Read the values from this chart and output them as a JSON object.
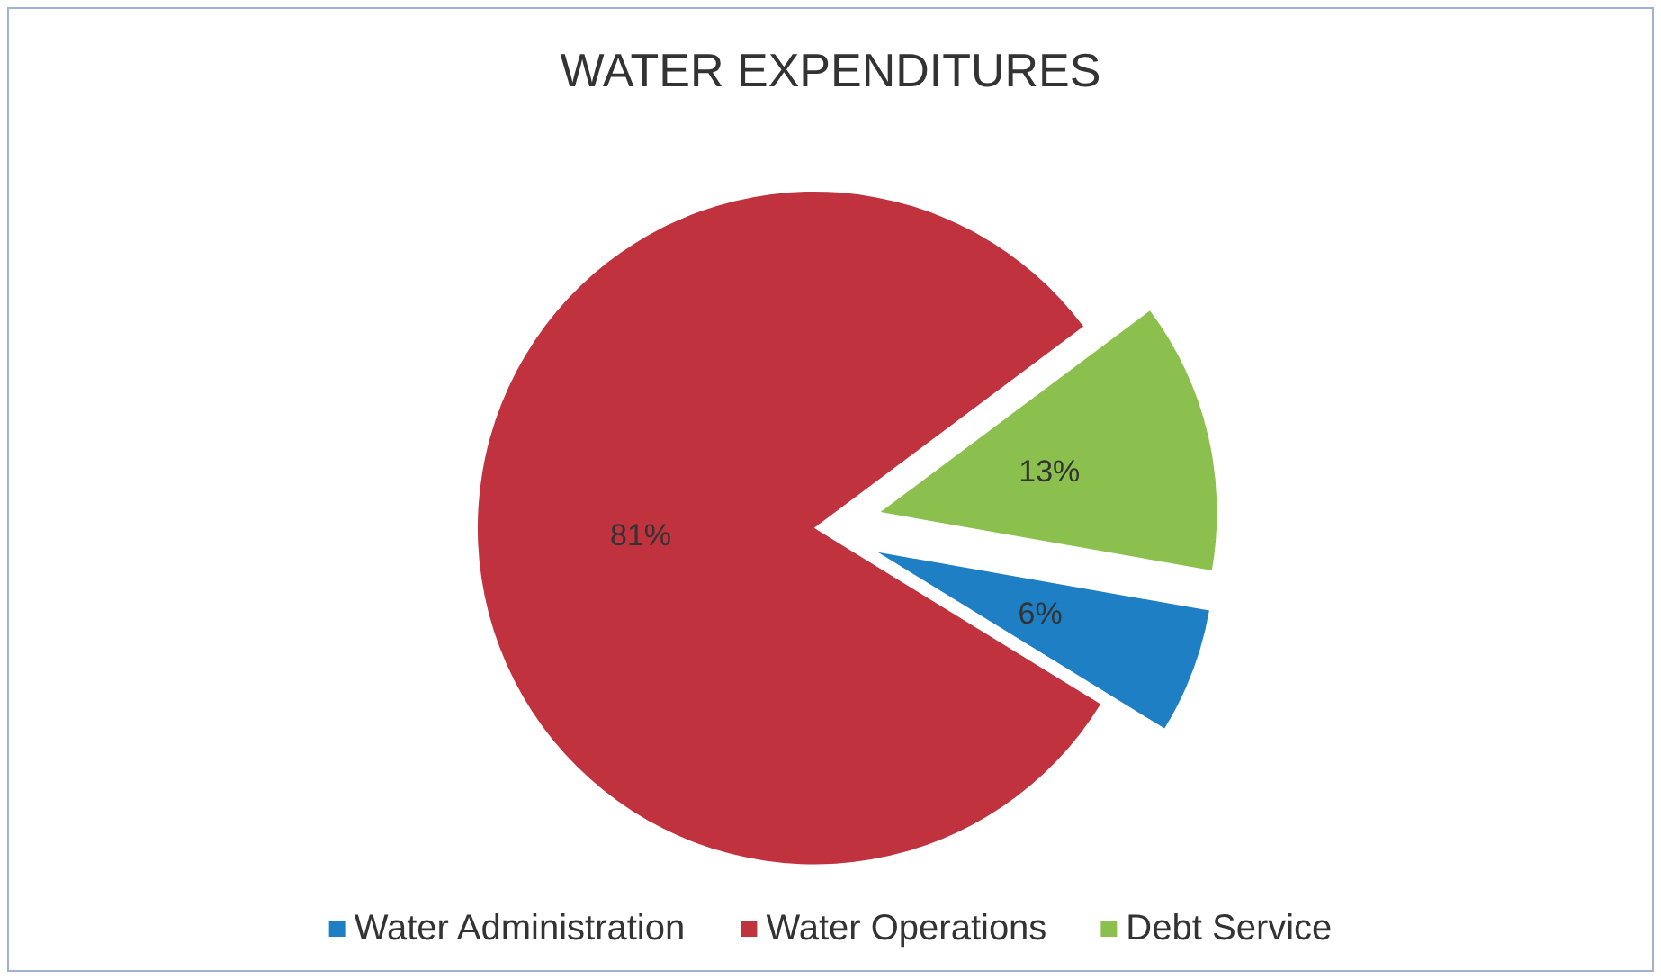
{
  "chart_data": {
    "type": "pie",
    "title": "WATER EXPENDITURES",
    "categories": [
      "Water Administration",
      "Water Operations",
      "Debt Service"
    ],
    "values": [
      6,
      81,
      13
    ],
    "colors": [
      "#1f7fc4",
      "#c0323e",
      "#8cc04e"
    ],
    "value_labels": [
      "6%",
      "81%",
      "13%"
    ],
    "legend": "bottom"
  }
}
